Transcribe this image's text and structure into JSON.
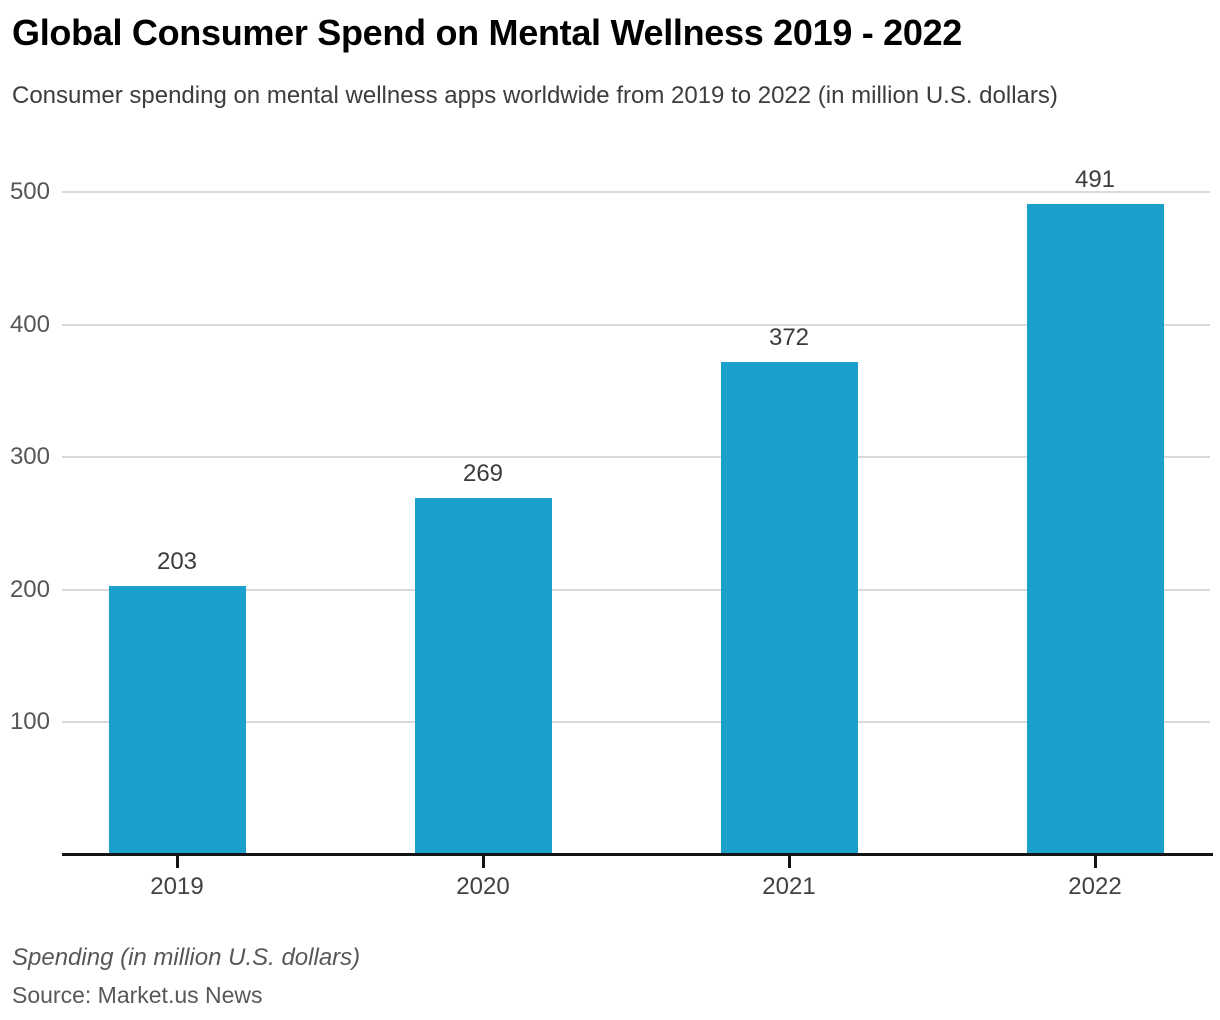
{
  "header": {
    "title": "Global Consumer Spend on Mental Wellness 2019 - 2022",
    "subtitle": "Consumer spending on mental wellness apps worldwide from 2019 to 2022 (in million U.S. dollars)"
  },
  "chart_data": {
    "type": "bar",
    "title": "Global Consumer Spend on Mental Wellness 2019 - 2022",
    "subtitle": "Consumer spending on mental wellness apps worldwide from 2019 to 2022 (in million U.S. dollars)",
    "categories": [
      "2019",
      "2020",
      "2021",
      "2022"
    ],
    "values": [
      203,
      269,
      372,
      491
    ],
    "xlabel": "",
    "ylabel": "Spending (in million U.S. dollars)",
    "ylim": [
      0,
      500
    ],
    "yticks": [
      100,
      200,
      300,
      400,
      500
    ],
    "grid": true,
    "legend": false,
    "value_labels": true,
    "bar_color": "#1aa0ca",
    "gridline_color": "#d9d9d9",
    "axis_color": "#141414"
  },
  "footer": {
    "axis_note": "Spending (in million U.S. dollars)",
    "source": "Source: Market.us News"
  }
}
